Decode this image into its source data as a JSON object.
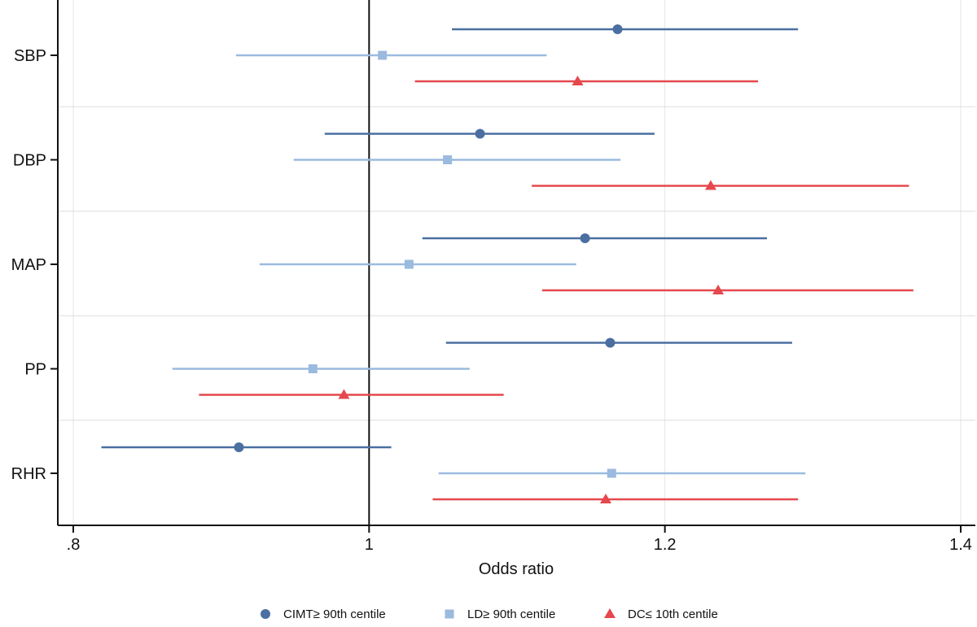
{
  "chart_data": {
    "type": "forest",
    "title": "",
    "xlabel": "Odds ratio",
    "ylabel": "",
    "xlim": [
      0.79,
      1.42
    ],
    "x_ticks": [
      {
        "value": 0.8,
        "label": ".8"
      },
      {
        "value": 1.0,
        "label": "1"
      },
      {
        "value": 1.2,
        "label": "1.2"
      },
      {
        "value": 1.4,
        "label": "1.4"
      }
    ],
    "reference_line": 1.0,
    "categories": [
      "SBP",
      "DBP",
      "MAP",
      "PP",
      "RHR"
    ],
    "series": [
      {
        "name": "CIMT≥ 90th centile",
        "marker": "circle",
        "color": "#4a6fa0",
        "points": [
          {
            "estimate": 1.168,
            "lower": 1.056,
            "upper": 1.29
          },
          {
            "estimate": 1.075,
            "lower": 0.97,
            "upper": 1.193
          },
          {
            "estimate": 1.146,
            "lower": 1.036,
            "upper": 1.269
          },
          {
            "estimate": 1.163,
            "lower": 1.052,
            "upper": 1.286
          },
          {
            "estimate": 0.912,
            "lower": 0.819,
            "upper": 1.015
          }
        ]
      },
      {
        "name": "LD≥ 90th centile",
        "marker": "square",
        "color": "#9bbadf",
        "points": [
          {
            "estimate": 1.009,
            "lower": 0.91,
            "upper": 1.12
          },
          {
            "estimate": 1.053,
            "lower": 0.949,
            "upper": 1.17
          },
          {
            "estimate": 1.027,
            "lower": 0.926,
            "upper": 1.14
          },
          {
            "estimate": 0.962,
            "lower": 0.867,
            "upper": 1.068
          },
          {
            "estimate": 1.164,
            "lower": 1.047,
            "upper": 1.295
          }
        ]
      },
      {
        "name": "DC≤ 10th centile",
        "marker": "triangle",
        "color": "#e5484d",
        "points": [
          {
            "estimate": 1.141,
            "lower": 1.031,
            "upper": 1.263
          },
          {
            "estimate": 1.231,
            "lower": 1.11,
            "upper": 1.365
          },
          {
            "estimate": 1.236,
            "lower": 1.117,
            "upper": 1.368
          },
          {
            "estimate": 0.983,
            "lower": 0.885,
            "upper": 1.091
          },
          {
            "estimate": 1.16,
            "lower": 1.043,
            "upper": 1.29
          }
        ]
      }
    ],
    "grid": true,
    "legend_position": "bottom"
  }
}
